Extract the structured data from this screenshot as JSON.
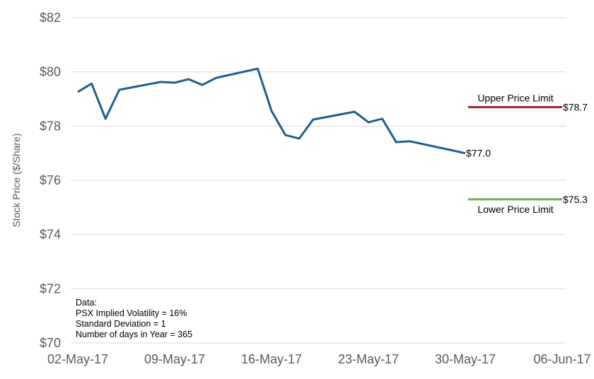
{
  "chart_data": {
    "type": "line",
    "title": "",
    "xlabel": "",
    "ylabel": "Stock Price ($/Share)",
    "ylim": [
      70,
      82
    ],
    "yticks": [
      70,
      72,
      74,
      76,
      78,
      80,
      82
    ],
    "ytick_labels": [
      "$70",
      "$72",
      "$74",
      "$76",
      "$78",
      "$80",
      "$82"
    ],
    "xlim": [
      "2017-05-02",
      "2017-06-06"
    ],
    "xticks": [
      "2017-05-02",
      "2017-05-09",
      "2017-05-16",
      "2017-05-23",
      "2017-05-30",
      "2017-06-06"
    ],
    "xtick_labels": [
      "02-May-17",
      "09-May-17",
      "16-May-17",
      "23-May-17",
      "30-May-17",
      "06-Jun-17"
    ],
    "grid": "horizontal",
    "series": [
      {
        "color": "#1f5f8b",
        "x": [
          "2017-05-02",
          "2017-05-03",
          "2017-05-04",
          "2017-05-05",
          "2017-05-08",
          "2017-05-09",
          "2017-05-10",
          "2017-05-11",
          "2017-05-12",
          "2017-05-15",
          "2017-05-16",
          "2017-05-17",
          "2017-05-18",
          "2017-05-19",
          "2017-05-22",
          "2017-05-23",
          "2017-05-24",
          "2017-05-25",
          "2017-05-26",
          "2017-05-30"
        ],
        "y": [
          79.26,
          79.57,
          78.27,
          79.34,
          79.63,
          79.6,
          79.73,
          79.52,
          79.78,
          80.12,
          78.56,
          77.67,
          77.54,
          78.24,
          78.53,
          78.14,
          78.27,
          77.41,
          77.44,
          77.0
        ],
        "end_label": "$77.0"
      },
      {
        "name": "Upper Price Limit",
        "color": "#a6262c",
        "x": [
          "2017-05-30",
          "2017-06-06"
        ],
        "y": [
          78.7,
          78.7
        ],
        "end_label": "$78.7"
      },
      {
        "name": "Lower Price Limit",
        "color": "#6ab04c",
        "x": [
          "2017-05-30",
          "2017-06-06"
        ],
        "y": [
          75.3,
          75.3
        ],
        "end_label": "$75.3"
      }
    ],
    "annotation": {
      "lines": [
        "Data:",
        "PSX Implied Volatility = 16%",
        "Standard Deviation  = 1",
        "Number of days in Year = 365"
      ]
    }
  }
}
